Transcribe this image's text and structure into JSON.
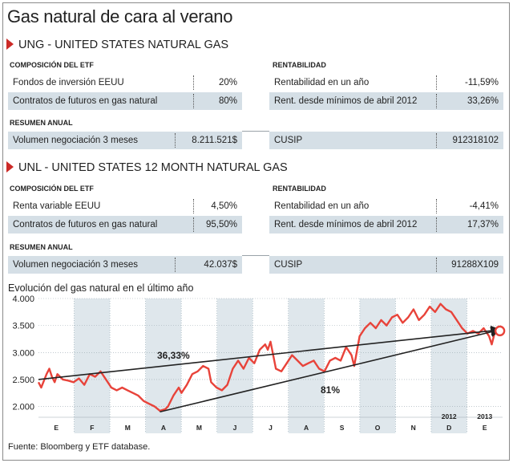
{
  "title": "Gas natural de cara al verano",
  "section1": {
    "heading": "UNG - UNITED STATES NATURAL GAS",
    "composition_label": "COMPOSICIÓN DEL ETF",
    "rentabilidad_label": "RENTABILIDAD",
    "composition": [
      {
        "label": "Fondos de inversión EEUU",
        "value": "20%"
      },
      {
        "label": "Contratos de futuros en gas natural",
        "value": "80%"
      }
    ],
    "rentabilidad": [
      {
        "label": "Rentabilidad en un año",
        "value": "-11,59%"
      },
      {
        "label": "Rent. desde mínimos de abril 2012",
        "value": "33,26%"
      }
    ],
    "resumen_label": "RESUMEN ANUAL",
    "volumen": {
      "label": "Volumen negociación 3 meses",
      "value": "8.211.521$"
    },
    "cusip": {
      "label": "CUSIP",
      "value": "912318102"
    }
  },
  "section2": {
    "heading": "UNL - UNITED STATES 12 MONTH NATURAL GAS",
    "composition_label": "COMPOSICIÓN DEL ETF",
    "rentabilidad_label": "RENTABILIDAD",
    "composition": [
      {
        "label": "Renta variable EEUU",
        "value": "4,50%"
      },
      {
        "label": "Contratos de futuros en gas natural",
        "value": "95,50%"
      }
    ],
    "rentabilidad": [
      {
        "label": "Rentabilidad en un año",
        "value": "-4,41%"
      },
      {
        "label": "Rent. desde mínimos de abril 2012",
        "value": "17,37%"
      }
    ],
    "resumen_label": "RESUMEN ANUAL",
    "volumen": {
      "label": "Volumen negociación 3 meses",
      "value": "42.037$"
    },
    "cusip": {
      "label": "CUSIP",
      "value": "91288X109"
    }
  },
  "chart_title": "Evolución del gas natural en el último año",
  "source": "Fuente: Bloomberg y ETF database.",
  "colors": {
    "line": "#e8433a",
    "trend": "#222222",
    "accent": "#cc2a27",
    "shade": "#d5dfe6",
    "plot_bg": "#ffffff",
    "shaded_columns": "#dfe7ec"
  },
  "chart_data": {
    "type": "line",
    "title": "Evolución del gas natural en el último año",
    "ylim": [
      1800,
      4000
    ],
    "yticks": [
      "2.000",
      "2.500",
      "3.000",
      "3.500",
      "4.000"
    ],
    "ytick_values": [
      2000,
      2500,
      3000,
      3500,
      4000
    ],
    "month_labels": [
      "E",
      "F",
      "M",
      "A",
      "M",
      "J",
      "J",
      "A",
      "S",
      "O",
      "N",
      "D",
      "E"
    ],
    "year_labels": [
      "2012",
      "2013"
    ],
    "grid": true,
    "series": [
      {
        "points": [
          [
            0,
            2450
          ],
          [
            1,
            2350
          ],
          [
            3,
            2600
          ],
          [
            4,
            2700
          ],
          [
            5,
            2550
          ],
          [
            6,
            2450
          ],
          [
            7,
            2600
          ],
          [
            9,
            2500
          ],
          [
            11,
            2480
          ],
          [
            13,
            2450
          ],
          [
            15,
            2520
          ],
          [
            17,
            2400
          ],
          [
            19,
            2600
          ],
          [
            21,
            2550
          ],
          [
            23,
            2650
          ],
          [
            25,
            2500
          ],
          [
            27,
            2350
          ],
          [
            29,
            2300
          ],
          [
            31,
            2350
          ],
          [
            33,
            2300
          ],
          [
            35,
            2250
          ],
          [
            37,
            2200
          ],
          [
            39,
            2100
          ],
          [
            41,
            2050
          ],
          [
            43,
            2000
          ],
          [
            45,
            1920
          ],
          [
            47,
            1950
          ],
          [
            48,
            2000
          ],
          [
            50,
            2200
          ],
          [
            52,
            2350
          ],
          [
            53,
            2250
          ],
          [
            55,
            2400
          ],
          [
            57,
            2600
          ],
          [
            59,
            2650
          ],
          [
            61,
            2750
          ],
          [
            63,
            2700
          ],
          [
            64,
            2450
          ],
          [
            66,
            2350
          ],
          [
            68,
            2300
          ],
          [
            70,
            2400
          ],
          [
            72,
            2700
          ],
          [
            74,
            2850
          ],
          [
            76,
            2700
          ],
          [
            78,
            2900
          ],
          [
            80,
            2800
          ],
          [
            82,
            3050
          ],
          [
            84,
            3150
          ],
          [
            85,
            3050
          ],
          [
            86,
            3200
          ],
          [
            88,
            2700
          ],
          [
            90,
            2650
          ],
          [
            92,
            2800
          ],
          [
            94,
            2950
          ],
          [
            96,
            2850
          ],
          [
            98,
            2750
          ],
          [
            100,
            2800
          ],
          [
            102,
            2850
          ],
          [
            104,
            2700
          ],
          [
            106,
            2650
          ],
          [
            108,
            2850
          ],
          [
            110,
            2900
          ],
          [
            112,
            2850
          ],
          [
            114,
            3100
          ],
          [
            116,
            2950
          ],
          [
            117,
            2750
          ],
          [
            119,
            3300
          ],
          [
            121,
            3450
          ],
          [
            123,
            3550
          ],
          [
            125,
            3450
          ],
          [
            127,
            3600
          ],
          [
            129,
            3500
          ],
          [
            131,
            3650
          ],
          [
            133,
            3700
          ],
          [
            135,
            3550
          ],
          [
            137,
            3650
          ],
          [
            139,
            3800
          ],
          [
            141,
            3600
          ],
          [
            143,
            3700
          ],
          [
            145,
            3850
          ],
          [
            147,
            3750
          ],
          [
            149,
            3900
          ],
          [
            151,
            3800
          ],
          [
            153,
            3750
          ],
          [
            155,
            3600
          ],
          [
            157,
            3450
          ],
          [
            159,
            3350
          ],
          [
            161,
            3400
          ],
          [
            163,
            3350
          ],
          [
            165,
            3450
          ],
          [
            167,
            3300
          ],
          [
            168,
            3150
          ],
          [
            169,
            3350
          ],
          [
            171,
            3400
          ]
        ]
      }
    ],
    "trendlines": [
      {
        "label": "36,33%",
        "from": [
          0,
          2500
        ],
        "to": [
          171,
          3420
        ]
      },
      {
        "label": "81%",
        "from": [
          45,
          1900
        ],
        "to": [
          171,
          3420
        ]
      }
    ],
    "end_marker": [
      171,
      3400
    ]
  }
}
